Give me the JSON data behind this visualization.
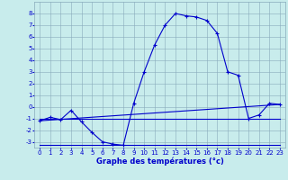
{
  "xlabel": "Graphe des températures (°c)",
  "bg_color": "#c8ecec",
  "grid_color": "#88aabb",
  "line_color": "#0000cc",
  "hours": [
    0,
    1,
    2,
    3,
    4,
    5,
    6,
    7,
    8,
    9,
    10,
    11,
    12,
    13,
    14,
    15,
    16,
    17,
    18,
    19,
    20,
    21,
    22,
    23
  ],
  "temp_main": [
    -1.2,
    -0.9,
    -1.1,
    -0.3,
    -1.3,
    -2.2,
    -3.0,
    -3.2,
    -3.3,
    0.3,
    3.0,
    5.3,
    7.0,
    8.0,
    7.8,
    7.7,
    7.4,
    6.3,
    3.0,
    2.7,
    -1.0,
    -0.7,
    0.3,
    0.2
  ],
  "ylim": [
    -3.5,
    9.0
  ],
  "xlim": [
    -0.5,
    23.5
  ],
  "yticks": [
    -3,
    -2,
    -1,
    0,
    1,
    2,
    3,
    4,
    5,
    6,
    7,
    8
  ],
  "xticks": [
    0,
    1,
    2,
    3,
    4,
    5,
    6,
    7,
    8,
    9,
    10,
    11,
    12,
    13,
    14,
    15,
    16,
    17,
    18,
    19,
    20,
    21,
    22,
    23
  ],
  "tick_fontsize": 5.0,
  "xlabel_fontsize": 6.0,
  "linewidth": 0.8,
  "marker_size": 3.5
}
